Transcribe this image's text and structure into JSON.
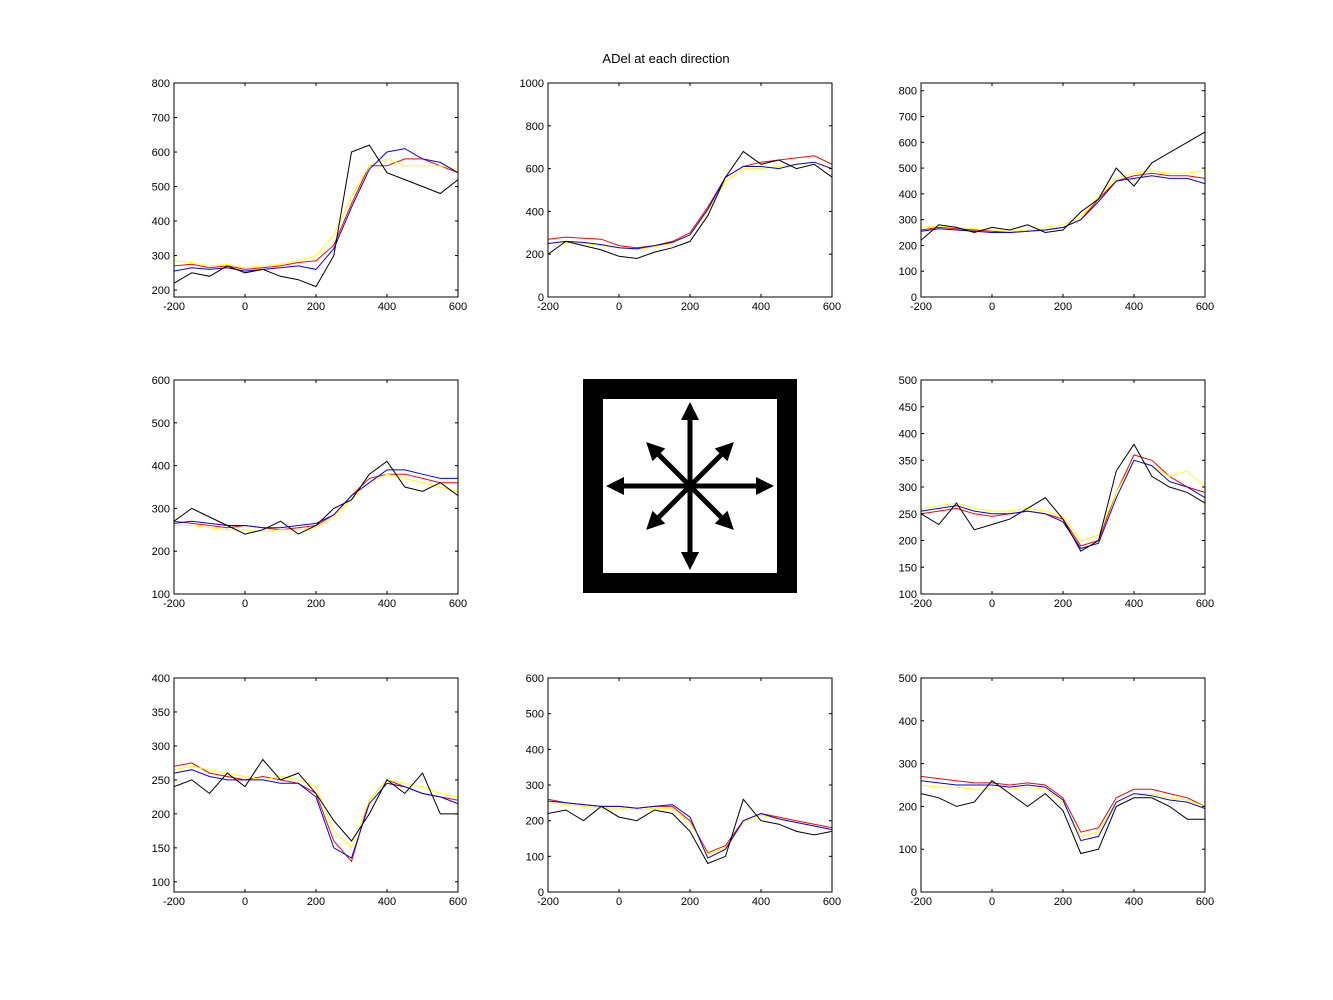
{
  "figure": {
    "title": "ADel at each direction",
    "center_icon": "eight-direction-arrows-icon"
  },
  "series_colors": {
    "s1": "#ff0000",
    "s2": "#ffff00",
    "s3": "#0000ff",
    "s4": "#000000"
  },
  "chart_data": [
    {
      "type": "line",
      "position": "top-left",
      "xlim": [
        -200,
        600
      ],
      "ylim": [
        180,
        800
      ],
      "xticks": [
        -200,
        0,
        200,
        400,
        600
      ],
      "yticks": [
        200,
        300,
        400,
        500,
        600,
        700,
        800
      ],
      "x": [
        -200,
        -150,
        -100,
        -50,
        0,
        50,
        100,
        150,
        200,
        250,
        300,
        350,
        400,
        450,
        500,
        550,
        600
      ],
      "series": [
        {
          "color": "#ff0000",
          "values": [
            270,
            275,
            265,
            270,
            260,
            265,
            270,
            280,
            285,
            330,
            450,
            560,
            560,
            580,
            580,
            560,
            540
          ]
        },
        {
          "color": "#ffff00",
          "values": [
            285,
            280,
            270,
            275,
            265,
            270,
            275,
            285,
            300,
            360,
            470,
            560,
            580,
            560,
            560,
            560,
            550
          ]
        },
        {
          "color": "#0000ff",
          "values": [
            255,
            265,
            260,
            265,
            255,
            260,
            265,
            270,
            260,
            320,
            440,
            550,
            600,
            610,
            580,
            570,
            540
          ]
        },
        {
          "color": "#000000",
          "values": [
            220,
            250,
            240,
            270,
            250,
            260,
            240,
            230,
            210,
            300,
            600,
            620,
            540,
            520,
            500,
            480,
            520
          ]
        }
      ]
    },
    {
      "type": "line",
      "position": "top-center",
      "xlim": [
        -200,
        600
      ],
      "ylim": [
        0,
        1000
      ],
      "xticks": [
        -200,
        0,
        200,
        400,
        600
      ],
      "yticks": [
        0,
        200,
        400,
        600,
        800,
        1000
      ],
      "x": [
        -200,
        -150,
        -100,
        -50,
        0,
        50,
        100,
        150,
        200,
        250,
        300,
        350,
        400,
        450,
        500,
        550,
        600
      ],
      "series": [
        {
          "color": "#ff0000",
          "values": [
            270,
            280,
            275,
            270,
            240,
            230,
            240,
            260,
            300,
            420,
            560,
            610,
            630,
            640,
            650,
            660,
            620
          ]
        },
        {
          "color": "#ffff00",
          "values": [
            250,
            255,
            250,
            240,
            230,
            220,
            235,
            250,
            290,
            400,
            540,
            600,
            600,
            610,
            620,
            630,
            600
          ]
        },
        {
          "color": "#0000ff",
          "values": [
            250,
            260,
            255,
            245,
            230,
            225,
            240,
            255,
            290,
            410,
            560,
            610,
            610,
            600,
            620,
            630,
            600
          ]
        },
        {
          "color": "#000000",
          "values": [
            200,
            260,
            240,
            220,
            190,
            180,
            210,
            230,
            260,
            380,
            560,
            680,
            620,
            640,
            600,
            620,
            560
          ]
        }
      ]
    },
    {
      "type": "line",
      "position": "top-right",
      "xlim": [
        -200,
        600
      ],
      "ylim": [
        0,
        830
      ],
      "xticks": [
        -200,
        0,
        200,
        400,
        600
      ],
      "yticks": [
        0,
        100,
        200,
        300,
        400,
        500,
        600,
        700,
        800
      ],
      "x": [
        -200,
        -150,
        -100,
        -50,
        0,
        50,
        100,
        150,
        200,
        250,
        300,
        350,
        400,
        450,
        500,
        550,
        600
      ],
      "series": [
        {
          "color": "#ff0000",
          "values": [
            260,
            270,
            265,
            260,
            255,
            250,
            255,
            260,
            270,
            300,
            380,
            450,
            470,
            480,
            470,
            470,
            460
          ]
        },
        {
          "color": "#ffff00",
          "values": [
            270,
            275,
            270,
            265,
            260,
            255,
            260,
            270,
            280,
            310,
            390,
            460,
            480,
            490,
            480,
            480,
            490
          ]
        },
        {
          "color": "#0000ff",
          "values": [
            255,
            265,
            260,
            255,
            250,
            250,
            255,
            260,
            270,
            300,
            370,
            450,
            460,
            470,
            460,
            460,
            440
          ]
        },
        {
          "color": "#000000",
          "values": [
            220,
            280,
            270,
            250,
            270,
            260,
            280,
            250,
            260,
            330,
            380,
            500,
            430,
            520,
            560,
            600,
            640
          ]
        }
      ]
    },
    {
      "type": "line",
      "position": "middle-left",
      "xlim": [
        -200,
        600
      ],
      "ylim": [
        100,
        600
      ],
      "xticks": [
        -200,
        0,
        200,
        400,
        600
      ],
      "yticks": [
        100,
        200,
        300,
        400,
        500,
        600
      ],
      "x": [
        -200,
        -150,
        -100,
        -50,
        0,
        50,
        100,
        150,
        200,
        250,
        300,
        350,
        400,
        450,
        500,
        550,
        600
      ],
      "series": [
        {
          "color": "#ff0000",
          "values": [
            270,
            265,
            260,
            255,
            260,
            255,
            250,
            255,
            260,
            285,
            330,
            370,
            380,
            380,
            370,
            360,
            360
          ]
        },
        {
          "color": "#ffff00",
          "values": [
            260,
            260,
            255,
            250,
            250,
            245,
            250,
            250,
            255,
            280,
            320,
            360,
            380,
            370,
            360,
            350,
            340
          ]
        },
        {
          "color": "#0000ff",
          "values": [
            265,
            270,
            265,
            260,
            260,
            255,
            255,
            260,
            265,
            285,
            330,
            360,
            390,
            390,
            380,
            370,
            370
          ]
        },
        {
          "color": "#000000",
          "values": [
            270,
            300,
            280,
            260,
            240,
            250,
            270,
            240,
            260,
            300,
            320,
            380,
            410,
            350,
            340,
            360,
            330
          ]
        }
      ]
    },
    {
      "type": "line",
      "position": "middle-right",
      "xlim": [
        -200,
        600
      ],
      "ylim": [
        100,
        500
      ],
      "xticks": [
        -200,
        0,
        200,
        400,
        600
      ],
      "yticks": [
        100,
        150,
        200,
        250,
        300,
        350,
        400,
        450,
        500
      ],
      "x": [
        -200,
        -150,
        -100,
        -50,
        0,
        50,
        100,
        150,
        200,
        250,
        300,
        350,
        400,
        450,
        500,
        550,
        600
      ],
      "series": [
        {
          "color": "#ff0000",
          "values": [
            250,
            255,
            260,
            250,
            245,
            250,
            255,
            250,
            240,
            190,
            200,
            290,
            360,
            350,
            320,
            300,
            290
          ]
        },
        {
          "color": "#ffff00",
          "values": [
            260,
            265,
            270,
            260,
            255,
            255,
            260,
            255,
            245,
            200,
            210,
            290,
            350,
            340,
            320,
            330,
            300
          ]
        },
        {
          "color": "#0000ff",
          "values": [
            255,
            260,
            265,
            255,
            250,
            250,
            255,
            250,
            235,
            185,
            195,
            280,
            350,
            340,
            310,
            300,
            280
          ]
        },
        {
          "color": "#000000",
          "values": [
            250,
            230,
            270,
            220,
            230,
            240,
            260,
            280,
            240,
            180,
            200,
            330,
            380,
            320,
            300,
            290,
            270
          ]
        }
      ]
    },
    {
      "type": "line",
      "position": "bottom-left",
      "xlim": [
        -200,
        600
      ],
      "ylim": [
        85,
        400
      ],
      "xticks": [
        -200,
        0,
        200,
        400,
        600
      ],
      "yticks": [
        100,
        150,
        200,
        250,
        300,
        350,
        400
      ],
      "x": [
        -200,
        -150,
        -100,
        -50,
        0,
        50,
        100,
        150,
        200,
        250,
        300,
        350,
        400,
        450,
        500,
        550,
        600
      ],
      "series": [
        {
          "color": "#ff0000",
          "values": [
            270,
            275,
            260,
            255,
            250,
            255,
            250,
            245,
            230,
            160,
            130,
            220,
            250,
            240,
            230,
            225,
            220
          ]
        },
        {
          "color": "#ffff00",
          "values": [
            265,
            270,
            265,
            260,
            255,
            250,
            255,
            250,
            240,
            175,
            150,
            220,
            250,
            245,
            240,
            230,
            225
          ]
        },
        {
          "color": "#0000ff",
          "values": [
            260,
            265,
            255,
            250,
            250,
            250,
            245,
            245,
            225,
            150,
            135,
            215,
            245,
            240,
            230,
            225,
            215
          ]
        },
        {
          "color": "#000000",
          "values": [
            240,
            250,
            230,
            260,
            240,
            280,
            250,
            260,
            230,
            190,
            160,
            200,
            250,
            230,
            260,
            200,
            200
          ]
        }
      ]
    },
    {
      "type": "line",
      "position": "bottom-center",
      "xlim": [
        -200,
        600
      ],
      "ylim": [
        0,
        600
      ],
      "xticks": [
        -200,
        0,
        200,
        400,
        600
      ],
      "yticks": [
        0,
        100,
        200,
        300,
        400,
        500,
        600
      ],
      "x": [
        -200,
        -150,
        -100,
        -50,
        0,
        50,
        100,
        150,
        200,
        250,
        300,
        350,
        400,
        450,
        500,
        550,
        600
      ],
      "series": [
        {
          "color": "#ff0000",
          "values": [
            260,
            250,
            245,
            240,
            240,
            235,
            240,
            240,
            200,
            110,
            130,
            200,
            220,
            210,
            200,
            190,
            180
          ]
        },
        {
          "color": "#ffff00",
          "values": [
            250,
            245,
            240,
            235,
            235,
            230,
            235,
            235,
            195,
            105,
            125,
            195,
            215,
            205,
            195,
            185,
            175
          ]
        },
        {
          "color": "#0000ff",
          "values": [
            255,
            250,
            245,
            240,
            240,
            235,
            240,
            245,
            210,
            95,
            120,
            200,
            220,
            205,
            195,
            185,
            175
          ]
        },
        {
          "color": "#000000",
          "values": [
            220,
            230,
            200,
            240,
            210,
            200,
            230,
            220,
            170,
            80,
            100,
            260,
            200,
            190,
            170,
            160,
            170
          ]
        }
      ]
    },
    {
      "type": "line",
      "position": "bottom-right",
      "xlim": [
        -200,
        600
      ],
      "ylim": [
        0,
        500
      ],
      "xticks": [
        -200,
        0,
        200,
        400,
        600
      ],
      "yticks": [
        0,
        100,
        200,
        300,
        400,
        500
      ],
      "x": [
        -200,
        -150,
        -100,
        -50,
        0,
        50,
        100,
        150,
        200,
        250,
        300,
        350,
        400,
        450,
        500,
        550,
        600
      ],
      "series": [
        {
          "color": "#ff0000",
          "values": [
            270,
            265,
            260,
            255,
            255,
            250,
            255,
            250,
            220,
            140,
            150,
            220,
            240,
            240,
            230,
            220,
            200
          ]
        },
        {
          "color": "#ffff00",
          "values": [
            250,
            245,
            245,
            240,
            240,
            240,
            245,
            240,
            210,
            130,
            140,
            210,
            230,
            230,
            220,
            215,
            200
          ]
        },
        {
          "color": "#0000ff",
          "values": [
            260,
            255,
            250,
            250,
            250,
            245,
            250,
            245,
            215,
            120,
            130,
            210,
            230,
            225,
            215,
            210,
            195
          ]
        },
        {
          "color": "#000000",
          "values": [
            230,
            220,
            200,
            210,
            260,
            230,
            200,
            230,
            190,
            90,
            100,
            200,
            220,
            220,
            200,
            170,
            170
          ]
        }
      ]
    }
  ]
}
